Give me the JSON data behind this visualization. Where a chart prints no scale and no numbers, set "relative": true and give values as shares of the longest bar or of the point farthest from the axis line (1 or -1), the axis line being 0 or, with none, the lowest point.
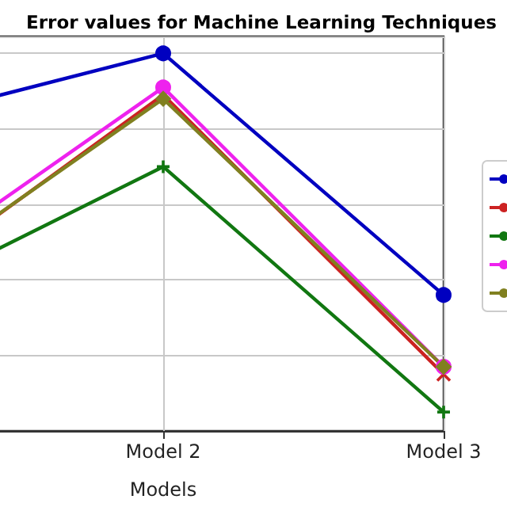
{
  "chart_data": {
    "type": "line",
    "title": "Error values for Machine Learning Techniques",
    "xlabel": "Models",
    "categories": [
      null,
      "Model 2",
      "Model 3"
    ],
    "relative": true,
    "grid": true,
    "series": [
      {
        "color": "#0000c0",
        "marker": "circle",
        "values": [
          0.81,
          1.0,
          0.36
        ]
      },
      {
        "color": "#cc2222",
        "marker": "cross",
        "values": [
          0.35,
          0.89,
          0.15
        ]
      },
      {
        "color": "#117711",
        "marker": "cross",
        "values": [
          0.33,
          0.7,
          0.05
        ]
      },
      {
        "color": "#ee22ee",
        "marker": "circle",
        "values": [
          0.39,
          0.91,
          0.17
        ]
      },
      {
        "color": "#808020",
        "marker": "diamond",
        "values": [
          0.36,
          0.88,
          0.17
        ]
      }
    ]
  }
}
